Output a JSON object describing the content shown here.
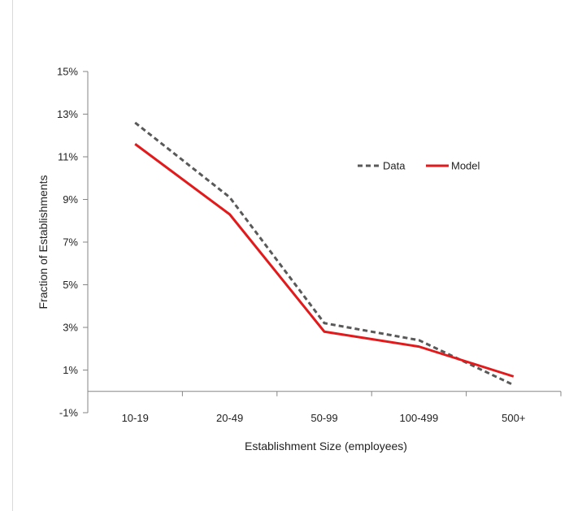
{
  "chart_data": {
    "type": "line",
    "title": "",
    "xlabel": "Establishment Size (employees)",
    "ylabel": "Fraction of Establishments",
    "categories": [
      "10-19",
      "20-49",
      "50-99",
      "100-499",
      "500+"
    ],
    "y_ticks": [
      "-1%",
      "1%",
      "3%",
      "5%",
      "7%",
      "9%",
      "11%",
      "13%",
      "15%"
    ],
    "ylim": [
      -1,
      15
    ],
    "grid": false,
    "legend_position": "right",
    "series": [
      {
        "name": "Data",
        "values": [
          12.6,
          9.1,
          3.2,
          2.4,
          0.3
        ],
        "color": "#595959",
        "style": "dashed"
      },
      {
        "name": "Model",
        "values": [
          11.6,
          8.3,
          2.8,
          2.1,
          0.7
        ],
        "color": "#e31a1c",
        "style": "solid"
      }
    ]
  }
}
